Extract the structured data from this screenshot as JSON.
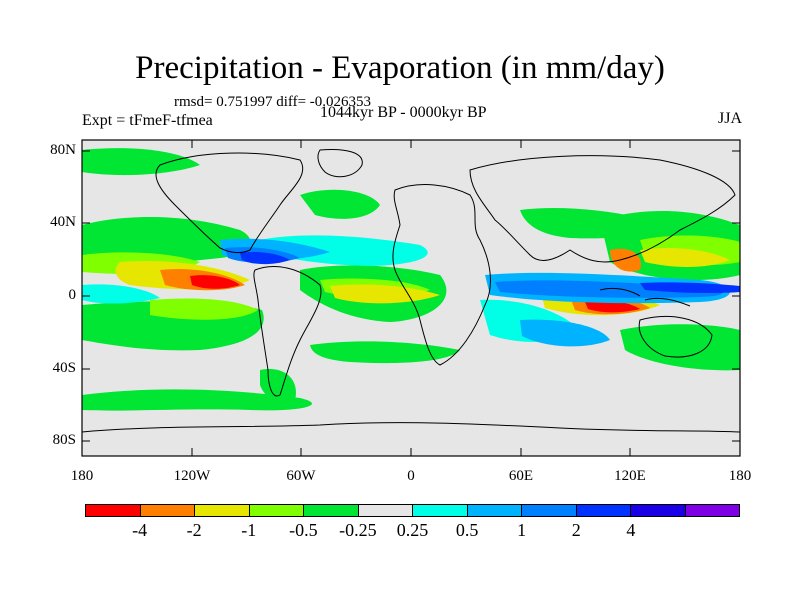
{
  "title": "Precipitation - Evaporation (in mm/day)",
  "stats": "rmsd= 0.751997  diff= -0.026353",
  "expt": "Expt = tFmeF-tfmea",
  "period": "1044kyr BP - 0000kyr BP",
  "season": "JJA",
  "y_ticks": [
    "80N",
    "40N",
    "0",
    "40S",
    "80S"
  ],
  "x_ticks": [
    "180",
    "120W",
    "60W",
    "0",
    "60E",
    "120E",
    "180"
  ],
  "colorbar": {
    "colors": [
      "#ff0000",
      "#ff8000",
      "#e6e600",
      "#80ff00",
      "#00e633",
      "#e6e6e6",
      "#00ffe6",
      "#00b3ff",
      "#0080ff",
      "#0033ff",
      "#1a00e6",
      "#8000e6"
    ],
    "labels": [
      "-4",
      "-2",
      "-1",
      "-0.5",
      "-0.25",
      "0.25",
      "0.5",
      "1",
      "2",
      "4"
    ]
  }
}
